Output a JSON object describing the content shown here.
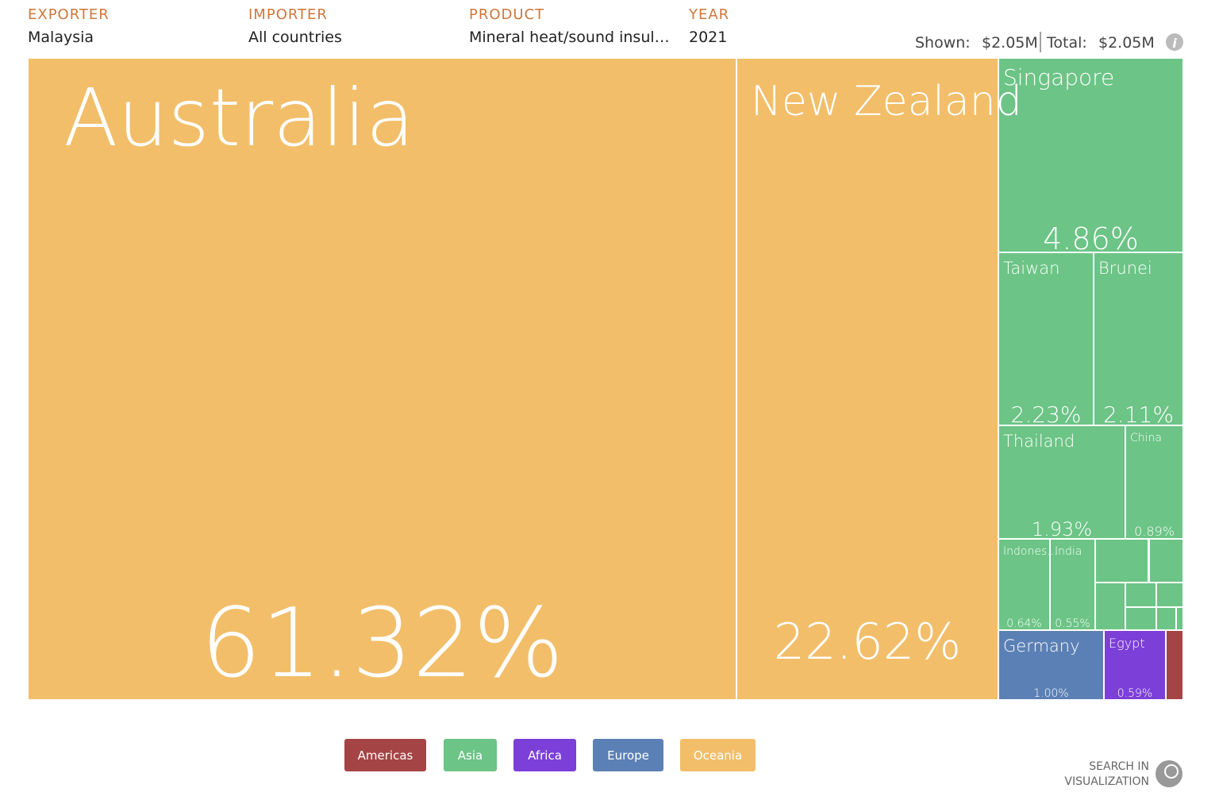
{
  "header": {
    "filters": [
      {
        "label": "EXPORTER",
        "value": "Malaysia"
      },
      {
        "label": "IMPORTER",
        "value": "All countries"
      },
      {
        "label": "PRODUCT",
        "value": "Mineral heat/sound insul…"
      },
      {
        "label": "YEAR",
        "value": "2021"
      }
    ],
    "shown_label": "Shown:",
    "shown_value": "$2.05M",
    "total_label": "Total:",
    "total_value": "$2.05M"
  },
  "chart_data": {
    "type": "treemap",
    "items": [
      {
        "name": "Australia",
        "value": 61.32,
        "value_label": "61.32%",
        "region": "Oceania"
      },
      {
        "name": "New Zealand",
        "value": 22.62,
        "value_label": "22.62%",
        "region": "Oceania"
      },
      {
        "name": "Singapore",
        "value": 4.86,
        "value_label": "4.86%",
        "region": "Asia"
      },
      {
        "name": "Taiwan",
        "value": 2.23,
        "value_label": "2.23%",
        "region": "Asia"
      },
      {
        "name": "Brunei",
        "value": 2.11,
        "value_label": "2.11%",
        "region": "Asia"
      },
      {
        "name": "Thailand",
        "value": 1.93,
        "value_label": "1.93%",
        "region": "Asia"
      },
      {
        "name": "China",
        "value": 0.89,
        "value_label": "0.89%",
        "region": "Asia"
      },
      {
        "name": "Indones...",
        "value": 0.64,
        "value_label": "0.64%",
        "region": "Asia"
      },
      {
        "name": "India",
        "value": 0.55,
        "value_label": "0.55%",
        "region": "Asia"
      },
      {
        "name": "Germany",
        "value": 1.0,
        "value_label": "1.00%",
        "region": "Europe"
      },
      {
        "name": "Egypt",
        "value": 0.59,
        "value_label": "0.59%",
        "region": "Africa"
      }
    ],
    "legend": [
      {
        "name": "Americas",
        "color": "#a54444"
      },
      {
        "name": "Asia",
        "color": "#6cc486"
      },
      {
        "name": "Africa",
        "color": "#7c3fd8"
      },
      {
        "name": "Europe",
        "color": "#5b80b5"
      },
      {
        "name": "Oceania",
        "color": "#f2be6a"
      }
    ]
  },
  "search": [
    "SEARCH IN",
    "VISUALIZATION"
  ]
}
